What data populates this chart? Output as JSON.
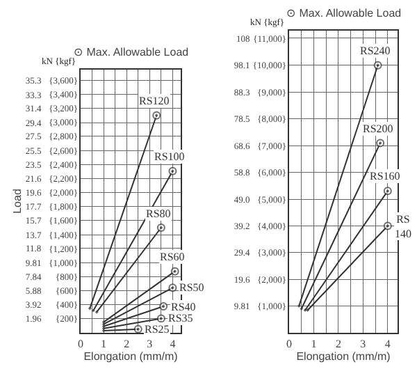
{
  "chart_data": [
    {
      "type": "line",
      "ylabel": "Load",
      "xlabel": "Elongation (mm/m)",
      "annotations": [
        "⊙ Max. Allowable Load",
        "kN {kgf}"
      ],
      "xlim": [
        0,
        4.35
      ],
      "xticks": [
        0,
        {
          "value": 0.5,
          "label": null
        },
        1,
        {
          "value": 1.5,
          "label": null
        },
        2,
        {
          "value": 2.5,
          "label": null
        },
        3,
        {
          "value": 3.5,
          "label": null
        },
        4
      ],
      "ylim": [
        0,
        36.8
      ],
      "yticks": [
        1.96,
        3.92,
        5.88,
        7.84,
        9.81,
        11.8,
        13.7,
        15.7,
        17.7,
        19.6,
        21.6,
        23.5,
        25.5,
        27.5,
        29.4,
        31.4,
        33.3,
        35.3
      ],
      "y2lim": [
        0,
        3752
      ],
      "y2ticks": [
        {
          "value": 200,
          "label": "{200}"
        },
        {
          "value": 400,
          "label": "{400}"
        },
        {
          "value": 600,
          "label": "{600}"
        },
        {
          "value": 800,
          "label": "{800}"
        },
        {
          "value": 1000,
          "label": "{1,000}"
        },
        {
          "value": 1200,
          "label": "{1,200}"
        },
        {
          "value": 1400,
          "label": "{1,400}"
        },
        {
          "value": 1600,
          "label": "{1,600}"
        },
        {
          "value": 1800,
          "label": "{1,800}"
        },
        {
          "value": 2000,
          "label": "{2,000}"
        },
        {
          "value": 2200,
          "label": "{2,200}"
        },
        {
          "value": 2400,
          "label": "{2,400}"
        },
        {
          "value": 2600,
          "label": "{2,600}"
        },
        {
          "value": 2800,
          "label": "{2,800}"
        },
        {
          "value": 3000,
          "label": "{3,000}"
        },
        {
          "value": 3200,
          "label": "{3,200}"
        },
        {
          "value": 3400,
          "label": "{3,400}"
        },
        {
          "value": 3600,
          "label": "{3,600}"
        }
      ],
      "grid": true,
      "legend": false,
      "marker": "circle",
      "line_style": "solid",
      "series": [
        {
          "name": "RS120",
          "color": "#333333",
          "x": [
            0.4,
            3.3
          ],
          "values": [
            3.4,
            30.4
          ]
        },
        {
          "name": "RS100",
          "color": "#333333",
          "x": [
            0.55,
            4.0
          ],
          "values": [
            3.1,
            22.6
          ]
        },
        {
          "name": "RS80",
          "color": "#333333",
          "x": [
            0.7,
            3.5
          ],
          "values": [
            2.9,
            14.7
          ]
        },
        {
          "name": "RS60",
          "color": "#333333",
          "x": [
            1.0,
            4.1
          ],
          "values": [
            1.5,
            8.6
          ]
        },
        {
          "name": "RS50",
          "color": "#333333",
          "x": [
            1.0,
            4.0
          ],
          "values": [
            1.2,
            6.3
          ]
        },
        {
          "name": "RS40",
          "color": "#333333",
          "x": [
            1.0,
            3.6
          ],
          "values": [
            0.9,
            3.7
          ]
        },
        {
          "name": "RS35",
          "color": "#333333",
          "x": [
            1.0,
            3.5
          ],
          "values": [
            0.6,
            2.0
          ]
        },
        {
          "name": "RS25",
          "color": "#333333",
          "x": [
            1.0,
            2.5
          ],
          "values": [
            0.3,
            0.5
          ]
        }
      ]
    },
    {
      "type": "line",
      "xlabel": "Elongation (mm/m)",
      "annotations": [
        "⊙ Max. Allowable Load",
        "kN {kgf}"
      ],
      "xlim": [
        0,
        4.4
      ],
      "xticks": [
        0,
        {
          "value": 0.5,
          "label": null
        },
        1,
        {
          "value": 1.5,
          "label": null
        },
        2,
        {
          "value": 2.5,
          "label": null
        },
        3,
        {
          "value": 3.5,
          "label": null
        },
        4
      ],
      "ylim": [
        0,
        110.8
      ],
      "yticks": [
        9.81,
        19.6,
        29.4,
        39.2,
        {
          "value": 49.0,
          "label": "49.0"
        },
        58.8,
        68.6,
        78.5,
        88.3,
        98.1,
        108
      ],
      "y2lim": [
        0,
        11300
      ],
      "y2ticks": [
        {
          "value": 1000,
          "label": "{1,000}"
        },
        {
          "value": 2000,
          "label": "{2,000}"
        },
        {
          "value": 3000,
          "label": "{3,000}"
        },
        {
          "value": 4000,
          "label": "{4,000}"
        },
        {
          "value": 5000,
          "label": "{5,000}"
        },
        {
          "value": 6000,
          "label": "{6,000}"
        },
        {
          "value": 7000,
          "label": "{7,000}"
        },
        {
          "value": 8000,
          "label": "{8,000}"
        },
        {
          "value": 9000,
          "label": "{9,000}"
        },
        {
          "value": 10000,
          "label": "{10,000}"
        },
        {
          "value": 11000,
          "label": "{11,000}"
        }
      ],
      "grid": true,
      "legend": false,
      "marker": "circle",
      "line_style": "solid",
      "series": [
        {
          "name": "RS240",
          "color": "#333333",
          "x": [
            0.4,
            3.6
          ],
          "values": [
            9.8,
            98.1
          ]
        },
        {
          "name": "RS200",
          "color": "#333333",
          "x": [
            0.5,
            3.7
          ],
          "values": [
            8.8,
            69.6
          ]
        },
        {
          "name": "RS160",
          "color": "#333333",
          "x": [
            0.65,
            4.0
          ],
          "values": [
            8.3,
            52.0
          ]
        },
        {
          "name": "RS 140",
          "color": "#333333",
          "x": [
            0.75,
            4.0
          ],
          "values": [
            8.3,
            39.2
          ]
        }
      ]
    }
  ]
}
